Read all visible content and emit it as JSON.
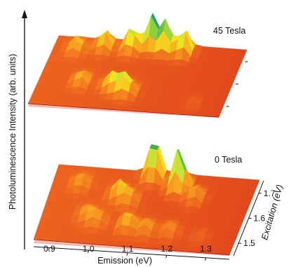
{
  "chart_data": {
    "type": "surface-3d",
    "ylabel": "Photoluminescence Intensity (arb. units)",
    "xlabel": "Emission (eV)",
    "zlabel": "Excitation (eV)",
    "x_ticks": [
      "0.9",
      "1.0",
      "1.1",
      "1.2",
      "1.3"
    ],
    "z_ticks": [
      "1.5",
      "1.6",
      "1.7"
    ],
    "xlim": [
      0.86,
      1.36
    ],
    "zlim": [
      1.45,
      1.75
    ],
    "colormap": [
      "#d9321b",
      "#ef6a1f",
      "#f7a020",
      "#f5e31c",
      "#bde33a",
      "#2fa84f",
      "#1e8fd0"
    ],
    "panels": [
      {
        "label": "45 Tesla",
        "peaks": [
          {
            "x": 0.92,
            "z": 1.7,
            "h": 0.3
          },
          {
            "x": 0.99,
            "z": 1.72,
            "h": 0.4
          },
          {
            "x": 1.06,
            "z": 1.72,
            "h": 0.55
          },
          {
            "x": 1.11,
            "z": 1.74,
            "h": 0.8
          },
          {
            "x": 1.15,
            "z": 1.73,
            "h": 0.72
          },
          {
            "x": 1.2,
            "z": 1.72,
            "h": 0.6
          },
          {
            "x": 0.97,
            "z": 1.56,
            "h": 0.28
          },
          {
            "x": 1.05,
            "z": 1.55,
            "h": 0.35
          },
          {
            "x": 1.08,
            "z": 1.54,
            "h": 0.33
          },
          {
            "x": 1.1,
            "z": 1.53,
            "h": 0.3
          },
          {
            "x": 1.28,
            "z": 1.5,
            "h": 0.06
          }
        ]
      },
      {
        "label": "0 Tesla",
        "peaks": [
          {
            "x": 1.1,
            "z": 1.74,
            "h": 0.75
          },
          {
            "x": 1.17,
            "z": 1.7,
            "h": 0.78
          },
          {
            "x": 1.22,
            "z": 1.66,
            "h": 0.25
          },
          {
            "x": 0.93,
            "z": 1.68,
            "h": 0.2
          },
          {
            "x": 1.03,
            "z": 1.65,
            "h": 0.28
          },
          {
            "x": 1.06,
            "z": 1.63,
            "h": 0.24
          },
          {
            "x": 0.97,
            "z": 1.56,
            "h": 0.18
          },
          {
            "x": 1.0,
            "z": 1.54,
            "h": 0.2
          },
          {
            "x": 1.08,
            "z": 1.53,
            "h": 0.3
          },
          {
            "x": 1.13,
            "z": 1.52,
            "h": 0.22
          },
          {
            "x": 1.19,
            "z": 1.52,
            "h": 0.18
          },
          {
            "x": 1.27,
            "z": 1.51,
            "h": 0.07
          }
        ]
      }
    ]
  }
}
